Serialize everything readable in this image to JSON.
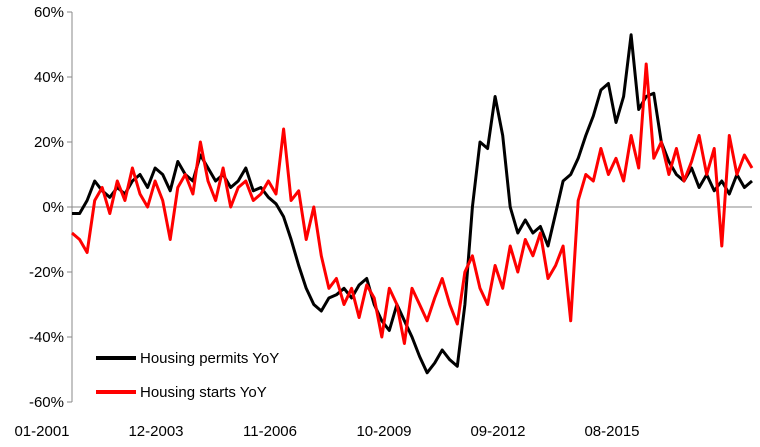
{
  "chart_data": {
    "type": "line",
    "title": "",
    "xlabel": "",
    "ylabel": "",
    "x_tick_labels": [
      "01-2001",
      "12-2003",
      "11-2006",
      "10-2009",
      "09-2012",
      "08-2015"
    ],
    "y_tick_labels": [
      "60%",
      "40%",
      "20%",
      "0%",
      "-20%",
      "-40%",
      "-60%"
    ],
    "y_ticks": [
      60,
      40,
      20,
      0,
      -20,
      -40,
      -60
    ],
    "ylim": [
      -60,
      60
    ],
    "x_range_years": [
      2001.0,
      2019.0
    ],
    "grid": false,
    "legend_position": "bottom-left",
    "series": [
      {
        "name": "Housing permits YoY",
        "color": "#000000",
        "points": [
          [
            2001.0,
            -2
          ],
          [
            2001.2,
            -2
          ],
          [
            2001.4,
            2
          ],
          [
            2001.6,
            8
          ],
          [
            2001.8,
            5
          ],
          [
            2002.0,
            3
          ],
          [
            2002.2,
            6
          ],
          [
            2002.4,
            4
          ],
          [
            2002.6,
            8
          ],
          [
            2002.8,
            10
          ],
          [
            2003.0,
            6
          ],
          [
            2003.2,
            12
          ],
          [
            2003.4,
            10
          ],
          [
            2003.6,
            5
          ],
          [
            2003.8,
            14
          ],
          [
            2004.0,
            10
          ],
          [
            2004.2,
            8
          ],
          [
            2004.4,
            16
          ],
          [
            2004.6,
            12
          ],
          [
            2004.8,
            8
          ],
          [
            2005.0,
            10
          ],
          [
            2005.2,
            6
          ],
          [
            2005.4,
            8
          ],
          [
            2005.6,
            12
          ],
          [
            2005.8,
            5
          ],
          [
            2006.0,
            6
          ],
          [
            2006.2,
            3
          ],
          [
            2006.4,
            1
          ],
          [
            2006.6,
            -3
          ],
          [
            2006.8,
            -10
          ],
          [
            2007.0,
            -18
          ],
          [
            2007.2,
            -25
          ],
          [
            2007.4,
            -30
          ],
          [
            2007.6,
            -32
          ],
          [
            2007.8,
            -28
          ],
          [
            2008.0,
            -27
          ],
          [
            2008.2,
            -25
          ],
          [
            2008.4,
            -28
          ],
          [
            2008.6,
            -24
          ],
          [
            2008.8,
            -22
          ],
          [
            2009.0,
            -30
          ],
          [
            2009.2,
            -35
          ],
          [
            2009.4,
            -38
          ],
          [
            2009.6,
            -30
          ],
          [
            2009.8,
            -35
          ],
          [
            2010.0,
            -40
          ],
          [
            2010.2,
            -46
          ],
          [
            2010.4,
            -51
          ],
          [
            2010.6,
            -48
          ],
          [
            2010.8,
            -44
          ],
          [
            2011.0,
            -47
          ],
          [
            2011.2,
            -49
          ],
          [
            2011.4,
            -30
          ],
          [
            2011.6,
            0
          ],
          [
            2011.8,
            20
          ],
          [
            2012.0,
            18
          ],
          [
            2012.2,
            34
          ],
          [
            2012.4,
            22
          ],
          [
            2012.6,
            0
          ],
          [
            2012.8,
            -8
          ],
          [
            2013.0,
            -4
          ],
          [
            2013.2,
            -8
          ],
          [
            2013.4,
            -6
          ],
          [
            2013.6,
            -12
          ],
          [
            2013.8,
            -2
          ],
          [
            2014.0,
            8
          ],
          [
            2014.2,
            10
          ],
          [
            2014.4,
            15
          ],
          [
            2014.6,
            22
          ],
          [
            2014.8,
            28
          ],
          [
            2015.0,
            36
          ],
          [
            2015.2,
            38
          ],
          [
            2015.4,
            26
          ],
          [
            2015.6,
            34
          ],
          [
            2015.8,
            53
          ],
          [
            2016.0,
            30
          ],
          [
            2016.2,
            34
          ],
          [
            2016.4,
            35
          ],
          [
            2016.6,
            20
          ],
          [
            2016.8,
            14
          ],
          [
            2017.0,
            10
          ],
          [
            2017.2,
            8
          ],
          [
            2017.4,
            12
          ],
          [
            2017.6,
            6
          ],
          [
            2017.8,
            10
          ],
          [
            2018.0,
            5
          ],
          [
            2018.2,
            8
          ],
          [
            2018.4,
            4
          ],
          [
            2018.6,
            10
          ],
          [
            2018.8,
            6
          ],
          [
            2019.0,
            8
          ]
        ]
      },
      {
        "name": "Housing starts YoY",
        "color": "#ff0000",
        "points": [
          [
            2001.0,
            -8
          ],
          [
            2001.2,
            -10
          ],
          [
            2001.4,
            -14
          ],
          [
            2001.6,
            2
          ],
          [
            2001.8,
            6
          ],
          [
            2002.0,
            -2
          ],
          [
            2002.2,
            8
          ],
          [
            2002.4,
            2
          ],
          [
            2002.6,
            12
          ],
          [
            2002.8,
            4
          ],
          [
            2003.0,
            0
          ],
          [
            2003.2,
            8
          ],
          [
            2003.4,
            2
          ],
          [
            2003.6,
            -10
          ],
          [
            2003.8,
            6
          ],
          [
            2004.0,
            10
          ],
          [
            2004.2,
            4
          ],
          [
            2004.4,
            20
          ],
          [
            2004.6,
            8
          ],
          [
            2004.8,
            2
          ],
          [
            2005.0,
            12
          ],
          [
            2005.2,
            0
          ],
          [
            2005.4,
            6
          ],
          [
            2005.6,
            8
          ],
          [
            2005.8,
            2
          ],
          [
            2006.0,
            4
          ],
          [
            2006.2,
            8
          ],
          [
            2006.4,
            4
          ],
          [
            2006.6,
            24
          ],
          [
            2006.8,
            2
          ],
          [
            2007.0,
            5
          ],
          [
            2007.2,
            -10
          ],
          [
            2007.4,
            0
          ],
          [
            2007.6,
            -15
          ],
          [
            2007.8,
            -25
          ],
          [
            2008.0,
            -22
          ],
          [
            2008.2,
            -30
          ],
          [
            2008.4,
            -25
          ],
          [
            2008.6,
            -34
          ],
          [
            2008.8,
            -24
          ],
          [
            2009.0,
            -28
          ],
          [
            2009.2,
            -40
          ],
          [
            2009.4,
            -25
          ],
          [
            2009.6,
            -30
          ],
          [
            2009.8,
            -42
          ],
          [
            2010.0,
            -25
          ],
          [
            2010.2,
            -30
          ],
          [
            2010.4,
            -35
          ],
          [
            2010.6,
            -28
          ],
          [
            2010.8,
            -22
          ],
          [
            2011.0,
            -30
          ],
          [
            2011.2,
            -36
          ],
          [
            2011.4,
            -20
          ],
          [
            2011.6,
            -15
          ],
          [
            2011.8,
            -25
          ],
          [
            2012.0,
            -30
          ],
          [
            2012.2,
            -18
          ],
          [
            2012.4,
            -25
          ],
          [
            2012.6,
            -12
          ],
          [
            2012.8,
            -20
          ],
          [
            2013.0,
            -10
          ],
          [
            2013.2,
            -15
          ],
          [
            2013.4,
            -8
          ],
          [
            2013.6,
            -22
          ],
          [
            2013.8,
            -18
          ],
          [
            2014.0,
            -12
          ],
          [
            2014.2,
            -35
          ],
          [
            2014.4,
            2
          ],
          [
            2014.6,
            10
          ],
          [
            2014.8,
            8
          ],
          [
            2015.0,
            18
          ],
          [
            2015.2,
            10
          ],
          [
            2015.4,
            15
          ],
          [
            2015.6,
            8
          ],
          [
            2015.8,
            22
          ],
          [
            2016.0,
            12
          ],
          [
            2016.2,
            44
          ],
          [
            2016.4,
            15
          ],
          [
            2016.6,
            20
          ],
          [
            2016.8,
            10
          ],
          [
            2017.0,
            18
          ],
          [
            2017.2,
            8
          ],
          [
            2017.4,
            14
          ],
          [
            2017.6,
            22
          ],
          [
            2017.8,
            10
          ],
          [
            2018.0,
            18
          ],
          [
            2018.2,
            -12
          ],
          [
            2018.4,
            22
          ],
          [
            2018.6,
            10
          ],
          [
            2018.8,
            16
          ],
          [
            2019.0,
            12
          ]
        ]
      }
    ]
  }
}
